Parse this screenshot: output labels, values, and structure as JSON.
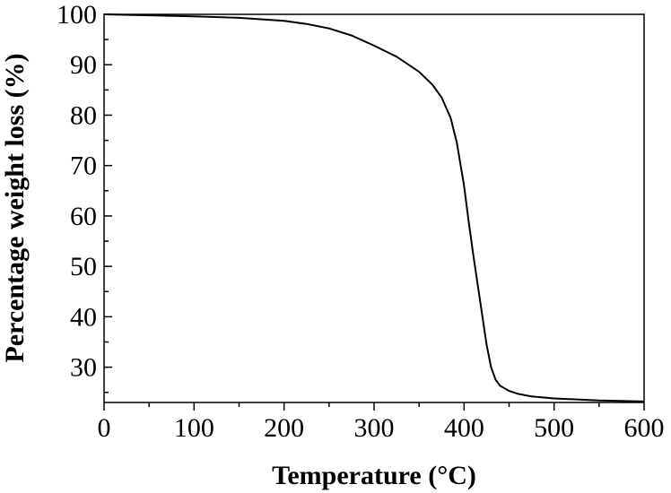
{
  "chart_data": {
    "type": "line",
    "title": "",
    "xlabel": "Temperature (°C)",
    "ylabel": "Percentage weight loss (%)",
    "xlim": [
      0,
      600
    ],
    "ylim": [
      23,
      100
    ],
    "xticks": [
      0,
      100,
      200,
      300,
      400,
      500,
      600
    ],
    "yticks": [
      30,
      40,
      50,
      60,
      70,
      80,
      90,
      100
    ],
    "grid": false,
    "legend": "none",
    "line_color": "#000000",
    "series": [
      {
        "x": [
          0,
          50,
          100,
          150,
          200,
          225,
          250,
          275,
          300,
          325,
          350,
          365,
          375,
          385,
          392,
          400,
          405,
          410,
          415,
          420,
          425,
          430,
          435,
          440,
          450,
          460,
          475,
          500,
          550,
          600
        ],
        "y": [
          100,
          99.8,
          99.6,
          99.3,
          98.7,
          98.1,
          97.2,
          95.8,
          93.8,
          91.6,
          88.6,
          86.0,
          83.5,
          79.5,
          74.5,
          66.0,
          59.0,
          52.5,
          46.5,
          40.5,
          34.5,
          30.0,
          27.5,
          26.3,
          25.3,
          24.7,
          24.2,
          23.8,
          23.4,
          23.2
        ]
      }
    ]
  }
}
